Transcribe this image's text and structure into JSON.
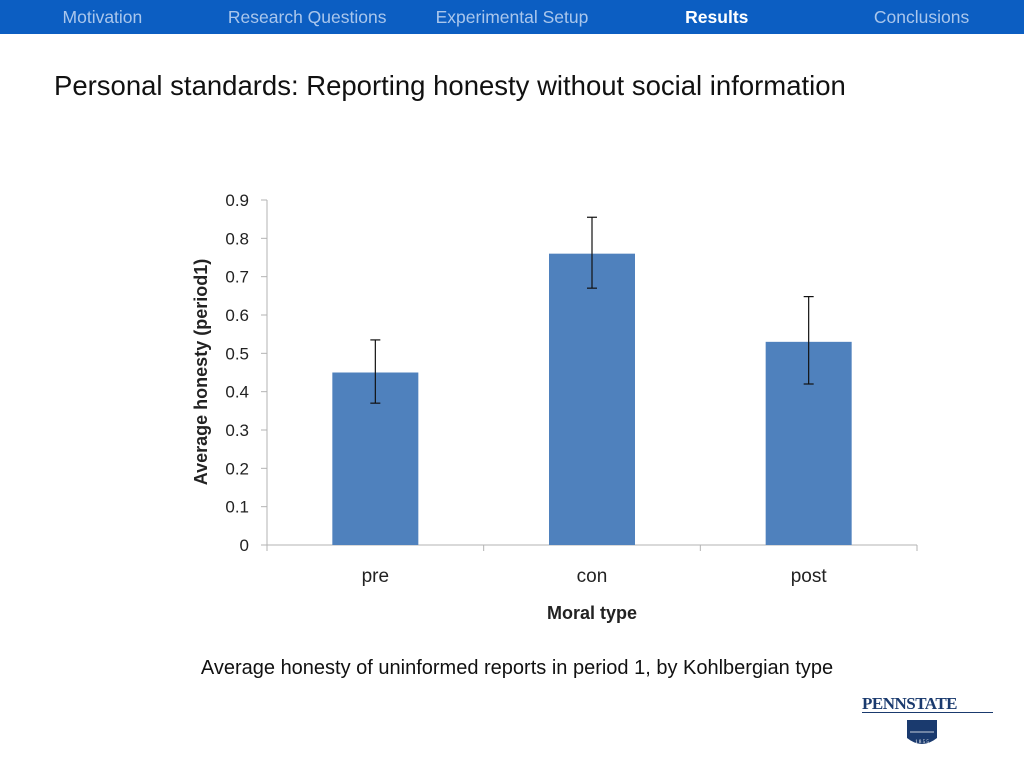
{
  "nav": {
    "items": [
      {
        "label": "Motivation",
        "active": false
      },
      {
        "label": "Research Questions",
        "active": false
      },
      {
        "label": "Experimental Setup",
        "active": false
      },
      {
        "label": "Results",
        "active": true
      },
      {
        "label": "Conclusions",
        "active": false
      }
    ]
  },
  "title": "Personal standards: Reporting honesty without social information",
  "caption": "Average honesty of uninformed reports in period 1, by Kohlbergian type",
  "logo": {
    "text": "PENNSTATE",
    "year": "1855"
  },
  "colors": {
    "nav_bg": "#0c5ec2",
    "bar": "#4f81bd",
    "axis": "#b3b3b3"
  },
  "chart_data": {
    "type": "bar",
    "categories": [
      "pre",
      "con",
      "post"
    ],
    "values": [
      0.45,
      0.76,
      0.53
    ],
    "error_low": [
      0.37,
      0.67,
      0.42
    ],
    "error_high": [
      0.535,
      0.855,
      0.648
    ],
    "xlabel": "Moral type",
    "ylabel": "Average honesty (period1)",
    "ylim": [
      0,
      0.9
    ],
    "yticks": [
      "0",
      "0.1",
      "0.2",
      "0.3",
      "0.4",
      "0.5",
      "0.6",
      "0.7",
      "0.8",
      "0.9"
    ],
    "grid": false,
    "legend": "none"
  }
}
